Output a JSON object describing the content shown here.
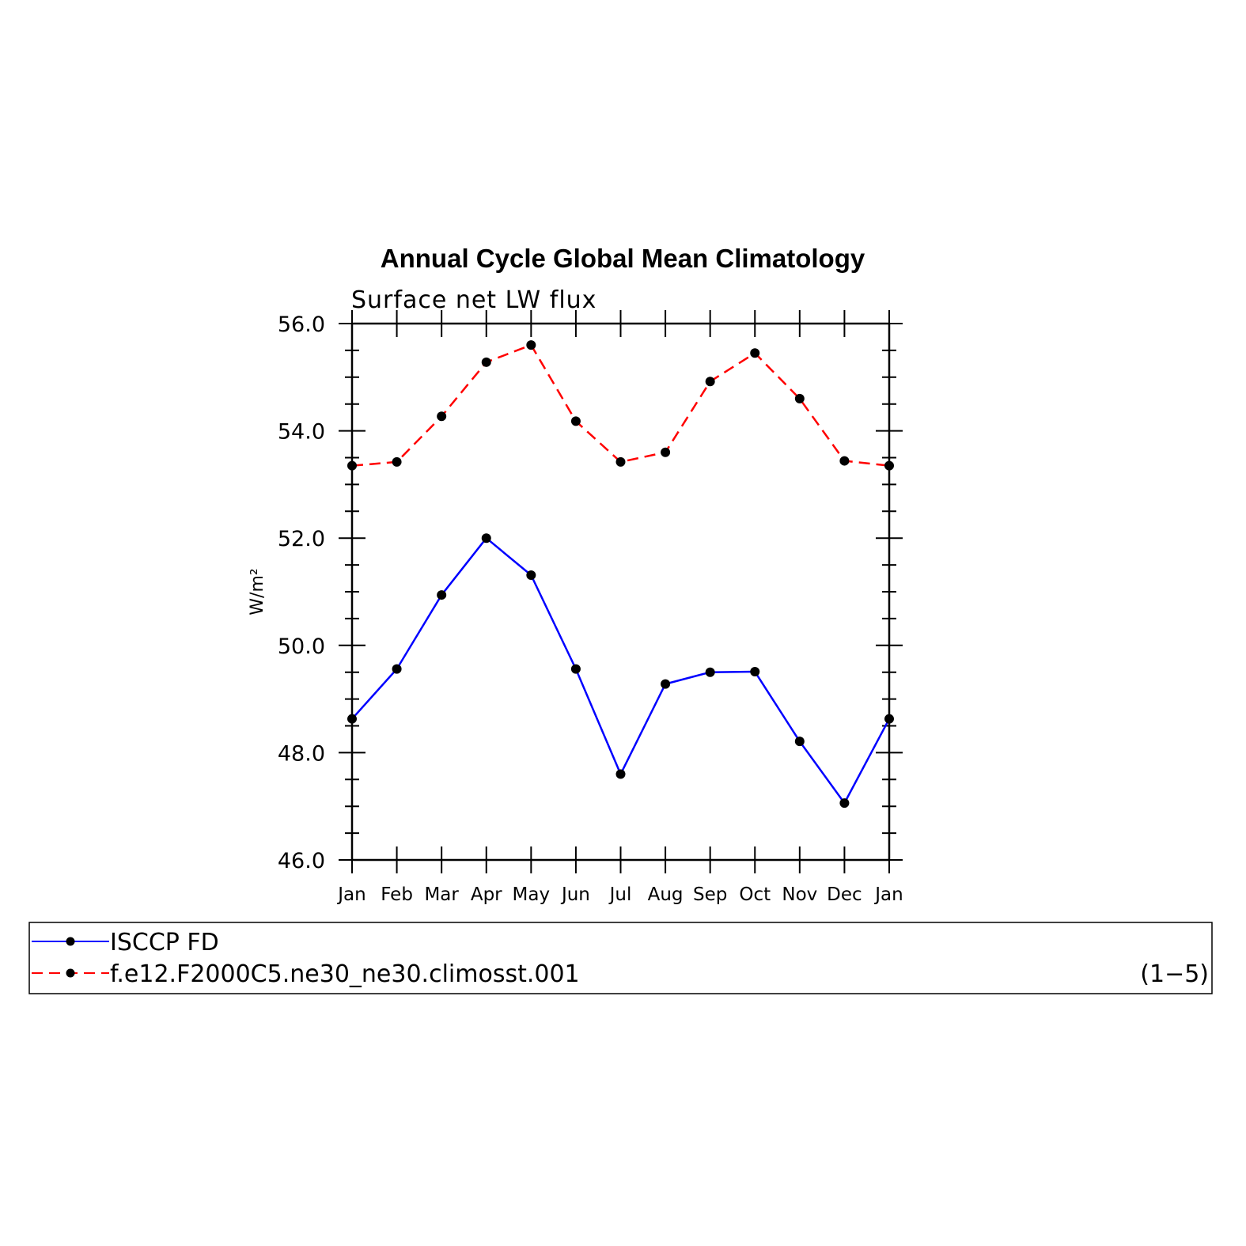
{
  "chart_data": {
    "type": "line",
    "title": "Annual Cycle Global Mean Climatology",
    "subtitle": "Surface net LW flux",
    "ylabel": "W/m²",
    "xlabel": "",
    "categories": [
      "Jan",
      "Feb",
      "Mar",
      "Apr",
      "May",
      "Jun",
      "Jul",
      "Aug",
      "Sep",
      "Oct",
      "Nov",
      "Dec",
      "Jan"
    ],
    "ylim": [
      46.0,
      56.0
    ],
    "yticks": [
      46.0,
      48.0,
      50.0,
      52.0,
      54.0,
      56.0
    ],
    "ytick_labels": [
      "46.0",
      "48.0",
      "50.0",
      "52.0",
      "54.0",
      "56.0"
    ],
    "grid": false,
    "legend_position": "bottom",
    "legend_note": "(1−5)",
    "series": [
      {
        "name": "ISCCP FD",
        "color": "#0000ff",
        "dash": "solid",
        "values": [
          48.63,
          49.56,
          50.94,
          52.0,
          51.31,
          49.56,
          47.6,
          49.28,
          49.5,
          49.51,
          48.21,
          47.06,
          48.63
        ]
      },
      {
        "name": "f.e12.F2000C5.ne30_ne30.climosst.001",
        "color": "#ff0000",
        "dash": "dashed",
        "values": [
          53.35,
          53.42,
          54.27,
          55.28,
          55.6,
          54.18,
          53.42,
          53.6,
          54.92,
          55.45,
          54.6,
          53.44,
          53.35
        ]
      }
    ]
  }
}
